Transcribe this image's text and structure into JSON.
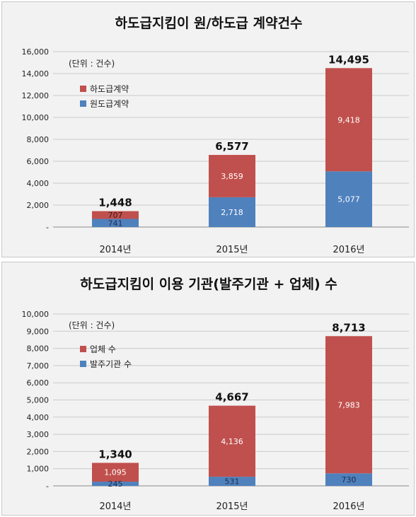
{
  "chart_data": [
    {
      "type": "bar",
      "stacked": true,
      "title": "하도급지킴이 원/하도급 계약건수",
      "unit_note": "(단위 : 건수)",
      "categories": [
        "2014년",
        "2015년",
        "2016년"
      ],
      "series": [
        {
          "name": "원도급계약",
          "values": [
            741,
            2718,
            5077
          ],
          "color": "#4f81bd"
        },
        {
          "name": "하도급계약",
          "values": [
            707,
            3859,
            9418
          ],
          "color": "#c0504d"
        }
      ],
      "totals": [
        1448,
        6577,
        14495
      ],
      "value_labels": [
        "741",
        "2,718",
        "5,077",
        "707",
        "3,859",
        "9,418"
      ],
      "total_labels": [
        "1,448",
        "6,577",
        "14,495"
      ],
      "legend_order": [
        1,
        0
      ],
      "legend_placement": "top-left",
      "yticks": [
        "-",
        "2,000",
        "4,000",
        "6,000",
        "8,000",
        "10,000",
        "12,000",
        "14,000",
        "16,000"
      ],
      "ylim": [
        0,
        16000
      ],
      "ystep": 2000,
      "grid": true
    },
    {
      "type": "bar",
      "stacked": true,
      "title": "하도급지킴이 이용 기관(발주기관 + 업체) 수",
      "unit_note": "(단위 : 건수)",
      "categories": [
        "2014년",
        "2015년",
        "2016년"
      ],
      "series": [
        {
          "name": "발주기관 수",
          "values": [
            245,
            531,
            730
          ],
          "color": "#4f81bd"
        },
        {
          "name": "업체 수",
          "values": [
            1095,
            4136,
            7983
          ],
          "color": "#c0504d"
        }
      ],
      "totals": [
        1340,
        4667,
        8713
      ],
      "value_labels": [
        "245",
        "531",
        "730",
        "1,095",
        "4,136",
        "7,983"
      ],
      "total_labels": [
        "1,340",
        "4,667",
        "8,713"
      ],
      "legend_order": [
        1,
        0
      ],
      "legend_placement": "top-left",
      "yticks": [
        "-",
        "1,000",
        "2,000",
        "3,000",
        "4,000",
        "5,000",
        "6,000",
        "7,000",
        "8,000",
        "9,000",
        "10,000"
      ],
      "ylim": [
        0,
        10000
      ],
      "ystep": 1000,
      "grid": true
    }
  ]
}
